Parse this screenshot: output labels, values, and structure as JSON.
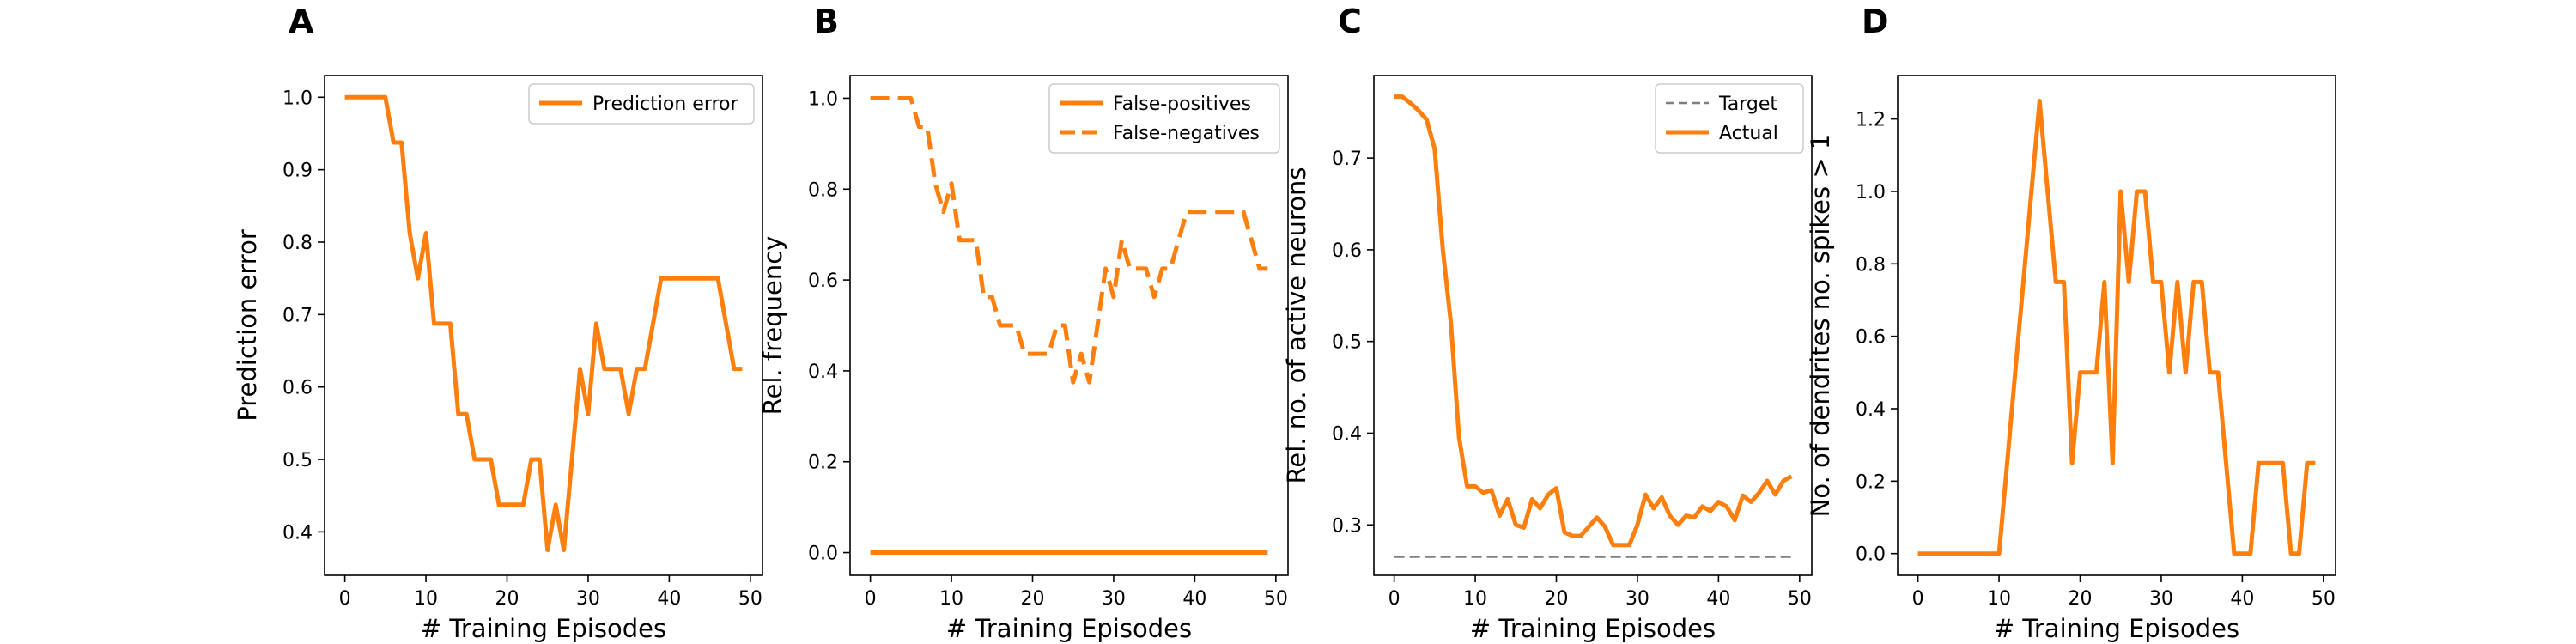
{
  "colors": {
    "orange": "#ff7f0e",
    "target": "#7f7f7f"
  },
  "chart_data": [
    {
      "type": "line",
      "panel_label": "A",
      "xlabel": "# Training Episodes",
      "ylabel": "Prediction error",
      "xlim": [
        -2.5,
        51.5
      ],
      "ylim": [
        0.34,
        1.03
      ],
      "xticks": [
        0,
        10,
        20,
        30,
        40,
        50
      ],
      "yticks": [
        0.4,
        0.5,
        0.6,
        0.7,
        0.8,
        0.9,
        1.0
      ],
      "ytick_labels": [
        "0.4",
        "0.5",
        "0.6",
        "0.7",
        "0.8",
        "0.9",
        "1.0"
      ],
      "legend_position": "top-right",
      "series": [
        {
          "name": "Prediction error",
          "style": "solid",
          "color": "#ff7f0e",
          "x": [
            0,
            1,
            2,
            3,
            4,
            5,
            6,
            7,
            8,
            9,
            10,
            11,
            12,
            13,
            14,
            15,
            16,
            17,
            18,
            19,
            20,
            21,
            22,
            23,
            24,
            25,
            26,
            27,
            28,
            29,
            30,
            31,
            32,
            33,
            34,
            35,
            36,
            37,
            38,
            39,
            40,
            41,
            42,
            43,
            44,
            45,
            46,
            47,
            48,
            49
          ],
          "y": [
            1.0,
            1.0,
            1.0,
            1.0,
            1.0,
            1.0,
            0.9375,
            0.9375,
            0.8125,
            0.75,
            0.8125,
            0.6875,
            0.6875,
            0.6875,
            0.5625,
            0.5625,
            0.5,
            0.5,
            0.5,
            0.4375,
            0.4375,
            0.4375,
            0.4375,
            0.5,
            0.5,
            0.375,
            0.4375,
            0.375,
            0.5,
            0.625,
            0.5625,
            0.6875,
            0.625,
            0.625,
            0.625,
            0.5625,
            0.625,
            0.625,
            0.6875,
            0.75,
            0.75,
            0.75,
            0.75,
            0.75,
            0.75,
            0.75,
            0.75,
            0.6875,
            0.625,
            0.625
          ]
        }
      ]
    },
    {
      "type": "line",
      "panel_label": "B",
      "xlabel": "# Training Episodes",
      "ylabel": "Rel. frequency",
      "xlim": [
        -2.5,
        51.5
      ],
      "ylim": [
        -0.05,
        1.05
      ],
      "xticks": [
        0,
        10,
        20,
        30,
        40,
        50
      ],
      "yticks": [
        0.0,
        0.2,
        0.4,
        0.6,
        0.8,
        1.0
      ],
      "ytick_labels": [
        "0.0",
        "0.2",
        "0.4",
        "0.6",
        "0.8",
        "1.0"
      ],
      "legend_position": "top-right",
      "series": [
        {
          "name": "False-positives",
          "style": "solid",
          "color": "#ff7f0e",
          "x": [
            0,
            49
          ],
          "y": [
            0.0,
            0.0
          ]
        },
        {
          "name": "False-negatives",
          "style": "dashed",
          "color": "#ff7f0e",
          "x": [
            0,
            1,
            2,
            3,
            4,
            5,
            6,
            7,
            8,
            9,
            10,
            11,
            12,
            13,
            14,
            15,
            16,
            17,
            18,
            19,
            20,
            21,
            22,
            23,
            24,
            25,
            26,
            27,
            28,
            29,
            30,
            31,
            32,
            33,
            34,
            35,
            36,
            37,
            38,
            39,
            40,
            41,
            42,
            43,
            44,
            45,
            46,
            47,
            48,
            49
          ],
          "y": [
            1.0,
            1.0,
            1.0,
            1.0,
            1.0,
            1.0,
            0.9375,
            0.9375,
            0.8125,
            0.75,
            0.8125,
            0.6875,
            0.6875,
            0.6875,
            0.5625,
            0.5625,
            0.5,
            0.5,
            0.5,
            0.4375,
            0.4375,
            0.4375,
            0.4375,
            0.5,
            0.5,
            0.375,
            0.4375,
            0.375,
            0.5,
            0.625,
            0.5625,
            0.6875,
            0.625,
            0.625,
            0.625,
            0.5625,
            0.625,
            0.625,
            0.6875,
            0.75,
            0.75,
            0.75,
            0.75,
            0.75,
            0.75,
            0.75,
            0.75,
            0.6875,
            0.625,
            0.625
          ]
        }
      ]
    },
    {
      "type": "line",
      "panel_label": "C",
      "xlabel": "# Training Episodes",
      "ylabel": "Rel. no. of active neurons",
      "xlim": [
        -2.5,
        51.5
      ],
      "ylim": [
        0.245,
        0.79
      ],
      "xticks": [
        0,
        10,
        20,
        30,
        40,
        50
      ],
      "yticks": [
        0.3,
        0.4,
        0.5,
        0.6,
        0.7
      ],
      "ytick_labels": [
        "0.3",
        "0.4",
        "0.5",
        "0.6",
        "0.7"
      ],
      "legend_position": "top-right",
      "series": [
        {
          "name": "Target",
          "style": "dashed-thin",
          "color": "#7f7f7f",
          "x": [
            0,
            49
          ],
          "y": [
            0.265,
            0.265
          ]
        },
        {
          "name": "Actual",
          "style": "solid",
          "color": "#ff7f0e",
          "x": [
            0,
            1,
            2,
            3,
            4,
            5,
            6,
            7,
            8,
            9,
            10,
            11,
            12,
            13,
            14,
            15,
            16,
            17,
            18,
            19,
            20,
            21,
            22,
            23,
            24,
            25,
            26,
            27,
            28,
            29,
            30,
            31,
            32,
            33,
            34,
            35,
            36,
            37,
            38,
            39,
            40,
            41,
            42,
            43,
            44,
            45,
            46,
            47,
            48,
            49
          ],
          "y": [
            0.767,
            0.767,
            0.76,
            0.752,
            0.742,
            0.71,
            0.6,
            0.52,
            0.395,
            0.342,
            0.342,
            0.335,
            0.338,
            0.31,
            0.328,
            0.3,
            0.297,
            0.328,
            0.318,
            0.333,
            0.34,
            0.292,
            0.288,
            0.288,
            0.298,
            0.308,
            0.298,
            0.278,
            0.278,
            0.278,
            0.3,
            0.333,
            0.318,
            0.33,
            0.31,
            0.3,
            0.31,
            0.308,
            0.32,
            0.315,
            0.325,
            0.32,
            0.305,
            0.332,
            0.325,
            0.335,
            0.348,
            0.333,
            0.348,
            0.353
          ]
        }
      ]
    },
    {
      "type": "line",
      "panel_label": "D",
      "xlabel": "# Training Episodes",
      "ylabel": "No. of dendrites no. spikes > 1",
      "xlim": [
        -2.5,
        51.5
      ],
      "ylim": [
        -0.06,
        1.32
      ],
      "xticks": [
        0,
        10,
        20,
        30,
        40,
        50
      ],
      "yticks": [
        0.0,
        0.2,
        0.4,
        0.6,
        0.8,
        1.0,
        1.2
      ],
      "ytick_labels": [
        "0.0",
        "0.2",
        "0.4",
        "0.6",
        "0.8",
        "1.0",
        "1.2"
      ],
      "legend_position": "none",
      "series": [
        {
          "name": "",
          "style": "solid",
          "color": "#ff7f0e",
          "x": [
            0,
            1,
            2,
            3,
            4,
            5,
            6,
            7,
            8,
            9,
            10,
            11,
            12,
            13,
            14,
            15,
            16,
            17,
            18,
            19,
            20,
            21,
            22,
            23,
            24,
            25,
            26,
            27,
            28,
            29,
            30,
            31,
            32,
            33,
            34,
            35,
            36,
            37,
            38,
            39,
            40,
            41,
            42,
            43,
            44,
            45,
            46,
            47,
            48,
            49
          ],
          "y": [
            0,
            0,
            0,
            0,
            0,
            0,
            0,
            0,
            0,
            0,
            0,
            0.25,
            0.5,
            0.75,
            1.0,
            1.25,
            1.0,
            0.75,
            0.75,
            0.25,
            0.5,
            0.5,
            0.5,
            0.75,
            0.25,
            1.0,
            0.75,
            1.0,
            1.0,
            0.75,
            0.75,
            0.5,
            0.75,
            0.5,
            0.75,
            0.75,
            0.5,
            0.5,
            0.25,
            0,
            0,
            0,
            0.25,
            0.25,
            0.25,
            0.25,
            0,
            0,
            0.25,
            0.25
          ]
        }
      ]
    }
  ]
}
